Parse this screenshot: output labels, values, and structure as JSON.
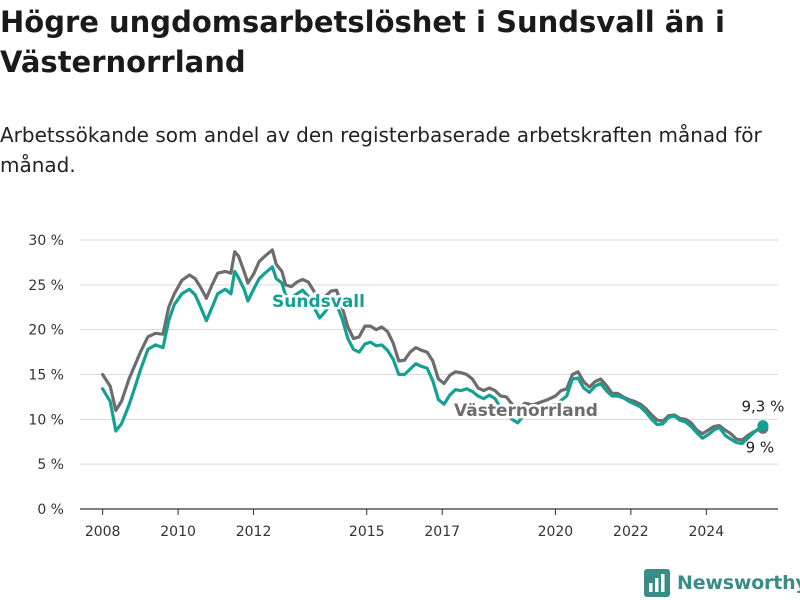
{
  "header": {
    "title": "Högre ungdomsarbetslöshet i Sundsvall än i Västernorrland",
    "subtitle": "Arbetssökande som andel av den registerbaserade arbetskraften månad för månad."
  },
  "brand": {
    "name": "Newsworthy",
    "color": "#3a8c86",
    "icon": "chart-logo-icon"
  },
  "colors": {
    "sundsvall": "#14a093",
    "vasternorrland": "#6d6d6d",
    "grid": "#d9d9d9",
    "axis": "#333333"
  },
  "chart_data": {
    "type": "line",
    "title": "Högre ungdomsarbetslöshet i Sundsvall än i Västernorrland",
    "subtitle": "Arbetssökande som andel av den registerbaserade arbetskraften månad för månad.",
    "xlabel": "",
    "ylabel": "",
    "ylim": [
      0,
      30
    ],
    "xlim": [
      2007.4,
      2025.9
    ],
    "yticks": [
      0,
      5,
      10,
      15,
      20,
      25,
      30
    ],
    "ytick_labels": [
      "0 %",
      "5 %",
      "10 %",
      "15 %",
      "20 %",
      "25 %",
      "30 %"
    ],
    "xticks": [
      2008,
      2010,
      2012,
      2015,
      2017,
      2020,
      2022,
      2024
    ],
    "xtick_labels": [
      "2008",
      "2010",
      "2012",
      "2015",
      "2017",
      "2020",
      "2022",
      "2024"
    ],
    "grid": true,
    "legend": "inline labels",
    "series": [
      {
        "name": "Västernorrland",
        "color": "#6d6d6d",
        "end_label": "9 %",
        "points": [
          [
            2008.0,
            15.0
          ],
          [
            2008.2,
            13.7
          ],
          [
            2008.35,
            11.0
          ],
          [
            2008.5,
            12.0
          ],
          [
            2008.7,
            14.5
          ],
          [
            2009.0,
            17.5
          ],
          [
            2009.2,
            19.2
          ],
          [
            2009.4,
            19.6
          ],
          [
            2009.6,
            19.5
          ],
          [
            2009.75,
            22.5
          ],
          [
            2009.9,
            24.0
          ],
          [
            2010.1,
            25.5
          ],
          [
            2010.3,
            26.1
          ],
          [
            2010.45,
            25.7
          ],
          [
            2010.6,
            24.7
          ],
          [
            2010.75,
            23.5
          ],
          [
            2010.9,
            25.0
          ],
          [
            2011.05,
            26.3
          ],
          [
            2011.25,
            26.5
          ],
          [
            2011.4,
            26.3
          ],
          [
            2011.5,
            28.7
          ],
          [
            2011.6,
            28.2
          ],
          [
            2011.75,
            26.5
          ],
          [
            2011.85,
            25.2
          ],
          [
            2012.0,
            26.2
          ],
          [
            2012.15,
            27.6
          ],
          [
            2012.3,
            28.2
          ],
          [
            2012.5,
            28.9
          ],
          [
            2012.6,
            27.3
          ],
          [
            2012.75,
            26.5
          ],
          [
            2012.85,
            25.0
          ],
          [
            2013.0,
            24.8
          ],
          [
            2013.15,
            25.3
          ],
          [
            2013.3,
            25.6
          ],
          [
            2013.45,
            25.3
          ],
          [
            2013.6,
            24.3
          ],
          [
            2013.75,
            23.5
          ],
          [
            2013.9,
            23.7
          ],
          [
            2014.05,
            24.3
          ],
          [
            2014.2,
            24.4
          ],
          [
            2014.35,
            22.5
          ],
          [
            2014.5,
            20.3
          ],
          [
            2014.65,
            19.0
          ],
          [
            2014.8,
            19.2
          ],
          [
            2014.95,
            20.4
          ],
          [
            2015.1,
            20.4
          ],
          [
            2015.25,
            20.0
          ],
          [
            2015.4,
            20.3
          ],
          [
            2015.55,
            19.8
          ],
          [
            2015.7,
            18.5
          ],
          [
            2015.85,
            16.5
          ],
          [
            2016.0,
            16.6
          ],
          [
            2016.15,
            17.5
          ],
          [
            2016.3,
            18.0
          ],
          [
            2016.45,
            17.7
          ],
          [
            2016.6,
            17.5
          ],
          [
            2016.75,
            16.5
          ],
          [
            2016.9,
            14.5
          ],
          [
            2017.05,
            14.0
          ],
          [
            2017.2,
            14.9
          ],
          [
            2017.35,
            15.3
          ],
          [
            2017.5,
            15.2
          ],
          [
            2017.65,
            15.0
          ],
          [
            2017.8,
            14.5
          ],
          [
            2017.95,
            13.5
          ],
          [
            2018.1,
            13.2
          ],
          [
            2018.25,
            13.5
          ],
          [
            2018.4,
            13.2
          ],
          [
            2018.55,
            12.6
          ],
          [
            2018.7,
            12.5
          ],
          [
            2018.85,
            11.7
          ],
          [
            2019.0,
            11.2
          ],
          [
            2019.2,
            11.8
          ],
          [
            2019.4,
            11.6
          ],
          [
            2019.6,
            11.9
          ],
          [
            2019.8,
            12.2
          ],
          [
            2020.0,
            12.6
          ],
          [
            2020.15,
            13.2
          ],
          [
            2020.3,
            13.4
          ],
          [
            2020.45,
            15.0
          ],
          [
            2020.6,
            15.3
          ],
          [
            2020.75,
            14.2
          ],
          [
            2020.9,
            13.6
          ],
          [
            2021.05,
            14.2
          ],
          [
            2021.2,
            14.5
          ],
          [
            2021.35,
            13.8
          ],
          [
            2021.5,
            12.9
          ],
          [
            2021.65,
            12.9
          ],
          [
            2021.8,
            12.5
          ],
          [
            2021.95,
            12.2
          ],
          [
            2022.1,
            12.0
          ],
          [
            2022.25,
            11.7
          ],
          [
            2022.4,
            11.2
          ],
          [
            2022.55,
            10.5
          ],
          [
            2022.7,
            9.9
          ],
          [
            2022.85,
            9.8
          ],
          [
            2023.0,
            10.4
          ],
          [
            2023.15,
            10.5
          ],
          [
            2023.3,
            10.1
          ],
          [
            2023.45,
            10.0
          ],
          [
            2023.6,
            9.6
          ],
          [
            2023.75,
            8.8
          ],
          [
            2023.9,
            8.4
          ],
          [
            2024.05,
            8.8
          ],
          [
            2024.2,
            9.2
          ],
          [
            2024.35,
            9.3
          ],
          [
            2024.5,
            8.8
          ],
          [
            2024.65,
            8.4
          ],
          [
            2024.8,
            7.8
          ],
          [
            2024.95,
            7.7
          ],
          [
            2025.1,
            8.2
          ],
          [
            2025.25,
            8.6
          ],
          [
            2025.4,
            8.9
          ],
          [
            2025.5,
            9.0
          ]
        ]
      },
      {
        "name": "Sundsvall",
        "color": "#14a093",
        "end_label": "9,3 %",
        "points": [
          [
            2008.0,
            13.4
          ],
          [
            2008.2,
            12.0
          ],
          [
            2008.35,
            8.7
          ],
          [
            2008.5,
            9.5
          ],
          [
            2008.7,
            11.6
          ],
          [
            2008.85,
            13.5
          ],
          [
            2009.0,
            15.5
          ],
          [
            2009.2,
            17.8
          ],
          [
            2009.4,
            18.3
          ],
          [
            2009.6,
            18.0
          ],
          [
            2009.75,
            21.0
          ],
          [
            2009.9,
            22.8
          ],
          [
            2010.1,
            24.0
          ],
          [
            2010.3,
            24.5
          ],
          [
            2010.45,
            23.9
          ],
          [
            2010.6,
            22.5
          ],
          [
            2010.75,
            21.0
          ],
          [
            2010.9,
            22.5
          ],
          [
            2011.05,
            24.0
          ],
          [
            2011.25,
            24.5
          ],
          [
            2011.4,
            24.0
          ],
          [
            2011.5,
            26.5
          ],
          [
            2011.6,
            25.8
          ],
          [
            2011.75,
            24.5
          ],
          [
            2011.85,
            23.2
          ],
          [
            2012.0,
            24.5
          ],
          [
            2012.15,
            25.7
          ],
          [
            2012.3,
            26.3
          ],
          [
            2012.5,
            27.0
          ],
          [
            2012.6,
            25.7
          ],
          [
            2012.75,
            25.2
          ],
          [
            2012.85,
            23.8
          ],
          [
            2013.0,
            23.5
          ],
          [
            2013.15,
            24.0
          ],
          [
            2013.3,
            24.4
          ],
          [
            2013.45,
            23.7
          ],
          [
            2013.6,
            22.5
          ],
          [
            2013.75,
            21.3
          ],
          [
            2013.9,
            22.0
          ],
          [
            2014.05,
            23.0
          ],
          [
            2014.2,
            22.8
          ],
          [
            2014.35,
            21.2
          ],
          [
            2014.5,
            19.0
          ],
          [
            2014.65,
            17.8
          ],
          [
            2014.8,
            17.5
          ],
          [
            2014.95,
            18.4
          ],
          [
            2015.1,
            18.6
          ],
          [
            2015.25,
            18.2
          ],
          [
            2015.4,
            18.3
          ],
          [
            2015.55,
            17.7
          ],
          [
            2015.7,
            16.7
          ],
          [
            2015.85,
            15.0
          ],
          [
            2016.0,
            15.0
          ],
          [
            2016.15,
            15.6
          ],
          [
            2016.3,
            16.2
          ],
          [
            2016.45,
            15.9
          ],
          [
            2016.6,
            15.7
          ],
          [
            2016.75,
            14.3
          ],
          [
            2016.9,
            12.2
          ],
          [
            2017.05,
            11.7
          ],
          [
            2017.2,
            12.7
          ],
          [
            2017.35,
            13.3
          ],
          [
            2017.5,
            13.2
          ],
          [
            2017.65,
            13.4
          ],
          [
            2017.8,
            13.1
          ],
          [
            2017.95,
            12.6
          ],
          [
            2018.1,
            12.3
          ],
          [
            2018.25,
            12.7
          ],
          [
            2018.4,
            12.3
          ],
          [
            2018.55,
            11.3
          ],
          [
            2018.7,
            10.8
          ],
          [
            2018.85,
            10.0
          ],
          [
            2019.0,
            9.6
          ],
          [
            2019.15,
            10.4
          ],
          [
            2019.35,
            10.9
          ],
          [
            2019.55,
            11.1
          ],
          [
            2019.75,
            11.4
          ],
          [
            2020.0,
            11.6
          ],
          [
            2020.15,
            12.1
          ],
          [
            2020.3,
            12.6
          ],
          [
            2020.45,
            14.5
          ],
          [
            2020.6,
            14.6
          ],
          [
            2020.75,
            13.5
          ],
          [
            2020.9,
            13.0
          ],
          [
            2021.05,
            13.7
          ],
          [
            2021.2,
            14.0
          ],
          [
            2021.35,
            13.2
          ],
          [
            2021.5,
            12.6
          ],
          [
            2021.65,
            12.6
          ],
          [
            2021.8,
            12.4
          ],
          [
            2021.95,
            12.0
          ],
          [
            2022.1,
            11.7
          ],
          [
            2022.25,
            11.4
          ],
          [
            2022.4,
            10.8
          ],
          [
            2022.55,
            10.0
          ],
          [
            2022.7,
            9.4
          ],
          [
            2022.85,
            9.5
          ],
          [
            2023.0,
            10.2
          ],
          [
            2023.15,
            10.4
          ],
          [
            2023.3,
            9.9
          ],
          [
            2023.45,
            9.7
          ],
          [
            2023.6,
            9.2
          ],
          [
            2023.75,
            8.5
          ],
          [
            2023.9,
            7.9
          ],
          [
            2024.05,
            8.3
          ],
          [
            2024.2,
            8.8
          ],
          [
            2024.35,
            9.1
          ],
          [
            2024.5,
            8.2
          ],
          [
            2024.65,
            7.8
          ],
          [
            2024.8,
            7.4
          ],
          [
            2024.95,
            7.3
          ],
          [
            2025.1,
            7.9
          ],
          [
            2025.25,
            8.5
          ],
          [
            2025.4,
            9.0
          ],
          [
            2025.5,
            9.3
          ]
        ]
      }
    ]
  }
}
